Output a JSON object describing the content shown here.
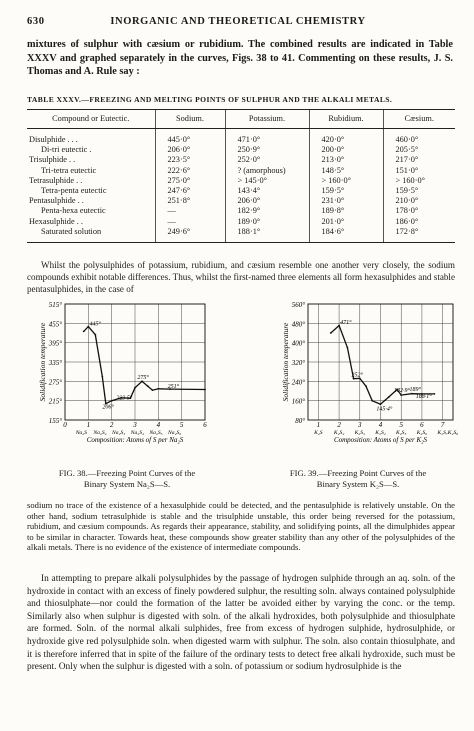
{
  "header": {
    "page_number": "630",
    "running_title": "INORGANIC AND THEORETICAL CHEMISTRY"
  },
  "intro_text": "mixtures of sulphur with cæsium or rubidium. The combined results are indicated in Table XXXV and graphed separately in the curves, Figs. 38 to 41. Commenting on these results, J. S. Thomas and A. Rule say :",
  "table": {
    "caption": "TABLE XXXV.—FREEZING AND MELTING POINTS OF SULPHUR AND THE ALKALI METALS.",
    "headers": [
      "Compound or Eutectic.",
      "Sodium.",
      "Potassium.",
      "Rubidium.",
      "Cæsium."
    ],
    "rows": [
      [
        "Disulphide   .   .   .",
        "445·0°",
        "471·0°",
        "420·0°",
        "460·0°"
      ],
      [
        "Di-tri eutectic   .",
        "206·0°",
        "250·9°",
        "200·0°",
        "205·5°"
      ],
      [
        "Trisulphide   .   .",
        "223·5°",
        "252·0°",
        "213·0°",
        "217·0°"
      ],
      [
        "Tri-tetra eutectic",
        "222·6°",
        "? (amorphous)",
        "148·5°",
        "151·0°"
      ],
      [
        "Tetrasulphide   .   .",
        "275·0°",
        "> 145·0°",
        "> 160·0°",
        "> 160·0°"
      ],
      [
        "Tetra-penta eutectic",
        "247·6°",
        "143·4°",
        "159·5°",
        "159·5°"
      ],
      [
        "Pentasulphide   .   .",
        "251·8°",
        "206·0°",
        "231·0°",
        "210·0°"
      ],
      [
        "Penta-hexa eutectic",
        "—",
        "182·9°",
        "189·8°",
        "178·0°"
      ],
      [
        "Hexasulphide   .   .",
        "—",
        "189·0°",
        "201·0°",
        "186·0°"
      ],
      [
        "Saturated solution",
        "249·6°",
        "188·1°",
        "184·6°",
        "172·8°"
      ]
    ]
  },
  "para_2": "Whilst the polysulphides of potassium, rubidium, and cæsium resemble one another very closely, the sodium compounds exhibit notable differences. Thus, whilst the first-named three elements all form hexasulphides and stable pentasulphides, in the case of",
  "fig38": {
    "caption_line1": "FIG. 38.—Freezing Point Curves of the",
    "caption_line2": "Binary System Na₂S—S.",
    "ylabel": "Solidification temperature",
    "xlabel": "Composition: Atoms of S per Na₂S",
    "y_ticks": [
      "515°",
      "455°",
      "395°",
      "335°",
      "275°",
      "215°",
      "155°"
    ],
    "x_ticks": [
      "0",
      "1",
      "2",
      "3",
      "4",
      "5",
      "6"
    ],
    "compound_labels": [
      "Na₂S",
      "Na₂S₂",
      "Na₂S₃",
      "Na₂S₄",
      "Na₂S₅",
      "Na₂S₆"
    ],
    "annotations": [
      "445°",
      "275°",
      "251°",
      "223·5°",
      "206°"
    ],
    "chart_data": {
      "type": "line",
      "xlabel": "Composition: Atoms of S per Na₂S",
      "ylabel": "Solidification temperature",
      "xlim": [
        0,
        6
      ],
      "ylim": [
        155,
        515
      ],
      "x": [
        0.8,
        1.0,
        1.3,
        1.6,
        1.75,
        2.0,
        2.4,
        2.8,
        3.0,
        3.3,
        3.55,
        3.75,
        4.0,
        4.5,
        6.0
      ],
      "values": [
        430,
        445,
        420,
        290,
        206,
        215,
        223.5,
        222.6,
        255,
        275,
        260,
        247.6,
        251.8,
        251,
        249.6
      ]
    }
  },
  "fig39": {
    "caption_line1": "FIG. 39.—Freezing Point Curves of the",
    "caption_line2": "Binary System K₂S—S.",
    "ylabel": "Solidification temperature",
    "xlabel": "Composition: Atoms of S per K₂S",
    "y_ticks": [
      "560°",
      "480°",
      "400°",
      "320°",
      "240°",
      "160°",
      "80°"
    ],
    "x_ticks": [
      "1",
      "2",
      "3",
      "4",
      "5",
      "6",
      "7"
    ],
    "compound_labels": [
      "K₂S",
      "K₂S₂",
      "K₂S₃",
      "K₂S₄",
      "K₂S₅",
      "K₂S₆",
      "K₂S₇",
      "K₂S₈"
    ],
    "annotations": [
      "471°",
      "252°",
      "182·9°",
      "189°",
      "188·1°",
      "145·4°"
    ],
    "chart_data": {
      "type": "line",
      "xlabel": "Composition: Atoms of S per K₂S",
      "ylabel": "Solidification temperature",
      "xlim": [
        0.5,
        7.5
      ],
      "ylim": [
        80,
        560
      ],
      "x": [
        1.6,
        2.0,
        2.4,
        2.7,
        3.0,
        3.3,
        3.6,
        4.0,
        4.4,
        4.8,
        5.0,
        5.5,
        6.0,
        6.6
      ],
      "values": [
        440,
        471,
        380,
        251,
        252,
        220,
        160,
        145.4,
        175,
        206,
        182.9,
        189,
        188.1,
        188.1
      ]
    }
  },
  "para_3": "sodium no trace of the existence of a hexasulphide could be detected, and the pentasulphide is relatively unstable. On the other hand, sodium tetrasulphide is stable and the trisulphide unstable, this order being reversed for the potassium, rubidium, and cæsium compounds. As regards their appearance, stability, and solidifying points, all the dimulphides appear to be similar in character. Towards heat, these compounds show greater stability than any other of the polysulphides of the alkali metals. There is no evidence of the existence of intermediate compounds.",
  "para_4": "In attempting to prepare alkali polysulphides by the passage of hydrogen sulphide through an aq. soln. of the hydroxide in contact with an excess of finely powdered sulphur, the resulting soln. always contained polysulphide and thiosulphate—nor could the formation of the latter be avoided either by varying the conc. or the temp. Similarly also when sulphur is digested with soln. of the alkali hydroxides, both polysulphide and thiosulphate are formed. Soln. of the normal alkali sulphides, free from excess of hydrogen sulphide, hydrosulphide, or hydroxide give red polysulphide soln. when digested warm with sulphur. The soln. also contain thiosulphate, and it is therefore inferred that in spite of the failure of the ordinary tests to detect free alkali hydroxide, such must be present. Only when the sulphur is digested with a soln. of potassium or sodium hydrosulphide is the"
}
